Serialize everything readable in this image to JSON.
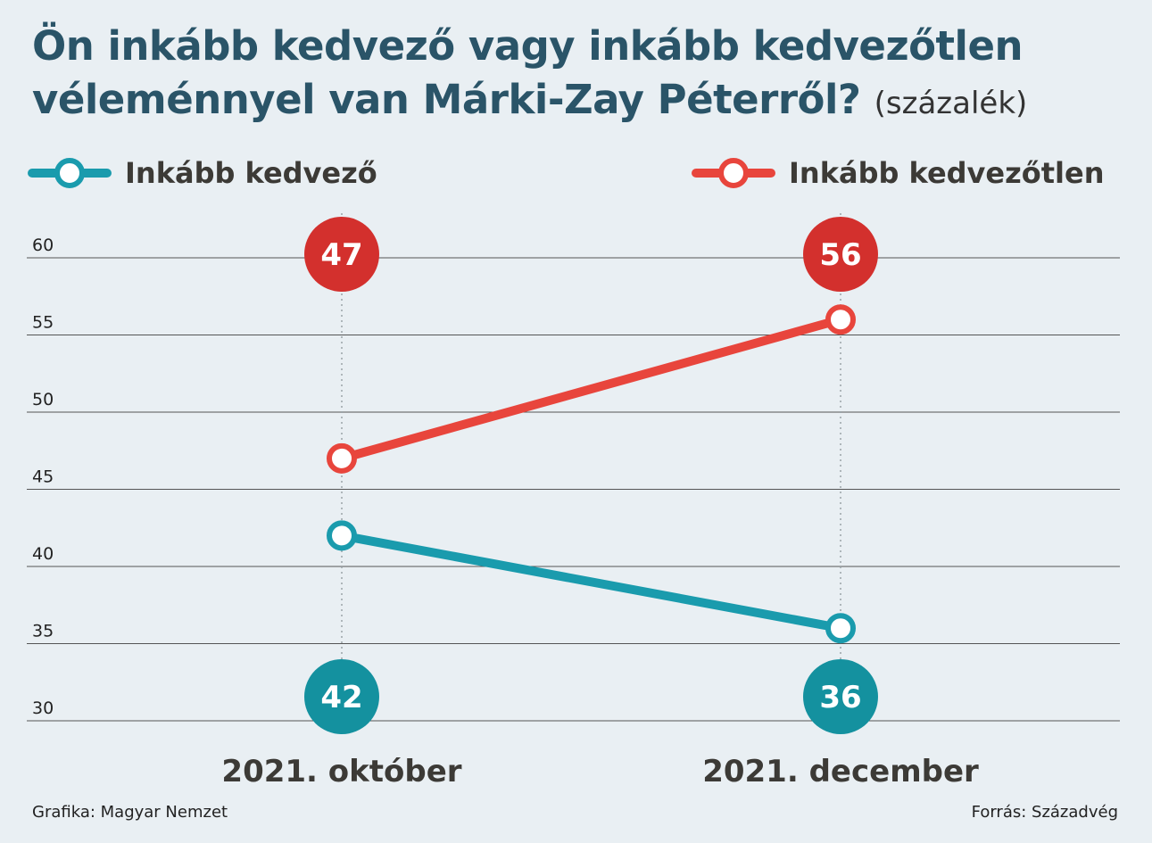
{
  "title": {
    "main": "Ön inkább kedvező vagy inkább kedvezőtlen véleménnyel van Márki-Zay Péterről?",
    "unit": "(százalék)"
  },
  "legend": [
    {
      "label": "Inkább kedvező",
      "color": "#1a9bad"
    },
    {
      "label": "Inkább kedvezőtlen",
      "color": "#e8453c"
    }
  ],
  "chart_data": {
    "type": "line",
    "x": [
      "2021. október",
      "2021. december"
    ],
    "series": [
      {
        "name": "Inkább kedvező",
        "values": [
          42,
          36
        ],
        "color": "#1a9bad",
        "badge_color": "#14919f"
      },
      {
        "name": "Inkább kedvezőtlen",
        "values": [
          47,
          56
        ],
        "color": "#e8453c",
        "badge_color": "#d3302d"
      }
    ],
    "ylim": [
      30,
      60
    ],
    "yticks": [
      30,
      35,
      40,
      45,
      50,
      55,
      60
    ],
    "grid": true,
    "legend_position": "top"
  },
  "footer": {
    "credit": "Grafika: Magyar Nemzet",
    "source": "Forrás: Századvég"
  }
}
